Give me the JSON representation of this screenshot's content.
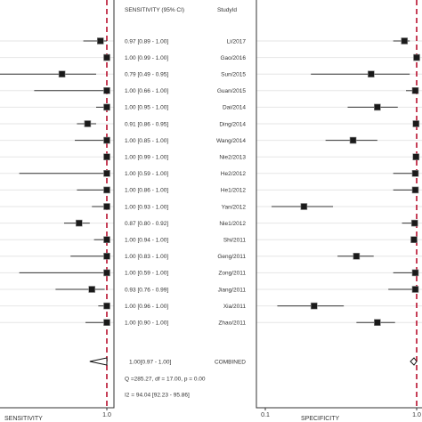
{
  "chart_data": {
    "type": "forest",
    "header": {
      "ci_column": "SENSITIVITY (95% CI)",
      "study_column": "StudyId"
    },
    "studies": [
      {
        "study": "Li/2017",
        "ci_text": "0.97 [0.89 - 1.00]",
        "sensitivity": 0.97,
        "sens_lo": 0.89,
        "sens_hi": 1.0,
        "specificity": 0.83,
        "spec_lo": 0.7,
        "spec_hi": 0.9
      },
      {
        "study": "Gao/2016",
        "ci_text": "1.00 [0.99 - 1.00]",
        "sensitivity": 1.0,
        "sens_lo": 0.99,
        "sens_hi": 1.0,
        "specificity": 1.0,
        "spec_lo": 0.97,
        "spec_hi": 1.0
      },
      {
        "study": "Sun/2015",
        "ci_text": "0.79 [0.49 - 0.95]",
        "sensitivity": 0.79,
        "sens_lo": 0.49,
        "sens_hi": 0.95,
        "specificity": 0.5,
        "spec_lo": 0.2,
        "spec_hi": 0.9
      },
      {
        "study": "Guan/2015",
        "ci_text": "1.00 [0.66 - 1.00]",
        "sensitivity": 1.0,
        "sens_lo": 0.66,
        "sens_hi": 1.0,
        "specificity": 0.98,
        "spec_lo": 0.85,
        "spec_hi": 1.0
      },
      {
        "study": "Dai/2014",
        "ci_text": "1.00 [0.95 - 1.00]",
        "sensitivity": 1.0,
        "sens_lo": 0.95,
        "sens_hi": 1.0,
        "specificity": 0.55,
        "spec_lo": 0.35,
        "spec_hi": 0.75
      },
      {
        "study": "Ding/2014",
        "ci_text": "0.91 [0.86 - 0.95]",
        "sensitivity": 0.91,
        "sens_lo": 0.86,
        "sens_hi": 0.95,
        "specificity": 0.99,
        "spec_lo": 0.95,
        "spec_hi": 1.0
      },
      {
        "study": "Wang/2014",
        "ci_text": "1.00 [0.85 - 1.00]",
        "sensitivity": 1.0,
        "sens_lo": 0.85,
        "sens_hi": 1.0,
        "specificity": 0.38,
        "spec_lo": 0.25,
        "spec_hi": 0.55
      },
      {
        "study": "Nie2/2013",
        "ci_text": "1.00 [0.99 - 1.00]",
        "sensitivity": 1.0,
        "sens_lo": 0.99,
        "sens_hi": 1.0,
        "specificity": 0.99,
        "spec_lo": 0.96,
        "spec_hi": 1.0
      },
      {
        "study": "He2/2012",
        "ci_text": "1.00 [0.59 - 1.00]",
        "sensitivity": 1.0,
        "sens_lo": 0.59,
        "sens_hi": 1.0,
        "specificity": 0.98,
        "spec_lo": 0.7,
        "spec_hi": 1.0
      },
      {
        "study": "He1/2012",
        "ci_text": "1.00 [0.86 - 1.00]",
        "sensitivity": 1.0,
        "sens_lo": 0.86,
        "sens_hi": 1.0,
        "specificity": 0.98,
        "spec_lo": 0.7,
        "spec_hi": 1.0
      },
      {
        "study": "Yan/2012",
        "ci_text": "1.00 [0.93 - 1.00]",
        "sensitivity": 1.0,
        "sens_lo": 0.93,
        "sens_hi": 1.0,
        "specificity": 0.18,
        "spec_lo": 0.11,
        "spec_hi": 0.28
      },
      {
        "study": "Nie1/2012",
        "ci_text": "0.87 [0.80 - 0.92]",
        "sensitivity": 0.87,
        "sens_lo": 0.8,
        "sens_hi": 0.92,
        "specificity": 0.97,
        "spec_lo": 0.8,
        "spec_hi": 1.0
      },
      {
        "study": "Shi/2011",
        "ci_text": "1.00 [0.94 - 1.00]",
        "sensitivity": 1.0,
        "sens_lo": 0.94,
        "sens_hi": 1.0,
        "specificity": 0.96,
        "spec_lo": 0.92,
        "spec_hi": 0.99
      },
      {
        "study": "Geng/2011",
        "ci_text": "1.00 [0.83 - 1.00]",
        "sensitivity": 1.0,
        "sens_lo": 0.83,
        "sens_hi": 1.0,
        "specificity": 0.4,
        "spec_lo": 0.3,
        "spec_hi": 0.52
      },
      {
        "study": "Zong/2011",
        "ci_text": "1.00 [0.59 - 1.00]",
        "sensitivity": 1.0,
        "sens_lo": 0.59,
        "sens_hi": 1.0,
        "specificity": 0.98,
        "spec_lo": 0.7,
        "spec_hi": 1.0
      },
      {
        "study": "Jiang/2011",
        "ci_text": "0.93 [0.76 - 0.99]",
        "sensitivity": 0.93,
        "sens_lo": 0.76,
        "sens_hi": 0.99,
        "specificity": 0.98,
        "spec_lo": 0.65,
        "spec_hi": 1.0
      },
      {
        "study": "Xia/2011",
        "ci_text": "1.00 [0.96 - 1.00]",
        "sensitivity": 1.0,
        "sens_lo": 0.96,
        "sens_hi": 1.0,
        "specificity": 0.21,
        "spec_lo": 0.12,
        "spec_hi": 0.33
      },
      {
        "study": "Zhao/2011",
        "ci_text": "1.00 [0.90 - 1.00]",
        "sensitivity": 1.0,
        "sens_lo": 0.9,
        "sens_hi": 1.0,
        "specificity": 0.55,
        "spec_lo": 0.4,
        "spec_hi": 0.72
      }
    ],
    "combined": {
      "study": "COMBINED",
      "ci_text": "1.00[0.97 - 1.00]",
      "sensitivity": 1.0,
      "sens_lo": 0.97,
      "sens_hi": 1.0,
      "specificity": 0.96,
      "spec_lo": 0.91,
      "spec_hi": 1.0
    },
    "heterogeneity": {
      "q_text": "Q =285.27, df = 17.00, p =  0.00",
      "i2_text": "I2 = 94.04 [92.23 - 95.86]"
    },
    "sensitivity_axis": {
      "label": "SENSITIVITY",
      "ticks": [
        {
          "value": 1.0,
          "label": "1.0"
        }
      ]
    },
    "specificity_axis": {
      "label": "SPECIFICITY",
      "scale": "log",
      "ticks": [
        {
          "value": 0.1,
          "label": "0.1"
        },
        {
          "value": 1.0,
          "label": "1.0"
        }
      ]
    },
    "reference_line_value": 1.0,
    "colors": {
      "reference_line": "#b8102e",
      "marker": "#1a1a1a"
    }
  }
}
